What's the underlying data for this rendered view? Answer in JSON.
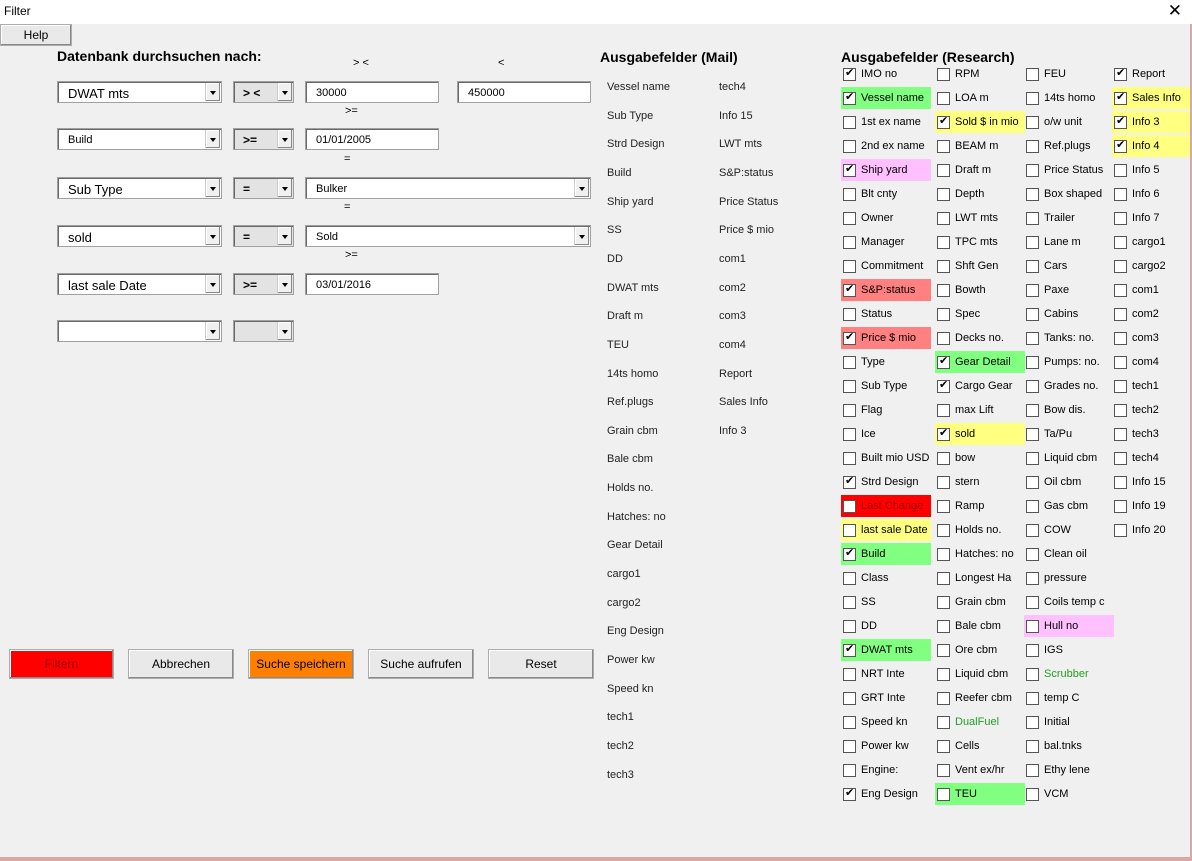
{
  "window": {
    "title": "Filter",
    "close": "✕"
  },
  "help_label": "Help",
  "search_heading": "Datenbank durchsuchen nach:",
  "op_hints": [
    "> <",
    "<",
    ">=",
    "=",
    "=",
    ">="
  ],
  "filters": [
    {
      "field": "DWAT mts",
      "op": "> <",
      "value": "30000",
      "value2": "450000",
      "value_type": "text"
    },
    {
      "field": "Build",
      "op": ">=",
      "value": "01/01/2005",
      "value_type": "text"
    },
    {
      "field": "Sub Type",
      "op": "=",
      "value": "Bulker",
      "value_type": "combo"
    },
    {
      "field": "sold",
      "op": "=",
      "value": "Sold",
      "value_type": "combo"
    },
    {
      "field": "last sale Date",
      "op": ">=",
      "value": "03/01/2016",
      "value_type": "text"
    },
    {
      "field": "",
      "op": "",
      "value_type": "none"
    }
  ],
  "buttons": {
    "filter": "Filtern",
    "cancel": "Abbrechen",
    "save": "Suche speichern",
    "load": "Suche aufrufen",
    "reset": "Reset"
  },
  "colors": {
    "filter_btn": "#ff0000",
    "save_btn": "#ff8000",
    "green": "#80ff80",
    "yellow": "#ffff80",
    "pink": "#ffc0ff",
    "salmon": "#ff8080",
    "red": "#ff0000"
  },
  "mail": {
    "heading": "Ausgabefelder (Mail)",
    "col1": [
      "Vessel name",
      "Sub Type",
      "Strd Design",
      "Build",
      "Ship yard",
      "SS",
      "DD",
      "DWAT mts",
      "Draft m",
      "TEU",
      "14ts homo",
      "Ref.plugs",
      "Grain cbm",
      "Bale cbm",
      "Holds no.",
      "Hatches: no",
      "Gear Detail",
      "cargo1",
      "cargo2",
      "Eng Design",
      "Power kw",
      "Speed kn",
      "tech1",
      "tech2",
      "tech3"
    ],
    "col2": [
      "tech4",
      "Info 15",
      "LWT mts",
      "S&P:status",
      "Price Status",
      "Price $ mio",
      "com1",
      "com2",
      "com3",
      "com4",
      "Report",
      "Sales Info",
      "Info 3"
    ]
  },
  "research": {
    "heading": "Ausgabefelder (Research)",
    "columns": [
      [
        {
          "label": "IMO no",
          "checked": true
        },
        {
          "label": "Vessel name",
          "checked": true,
          "bg": "green"
        },
        {
          "label": "1st ex name"
        },
        {
          "label": "2nd ex name"
        },
        {
          "label": "Ship yard",
          "checked": true,
          "bg": "pink"
        },
        {
          "label": "Blt cnty"
        },
        {
          "label": "Owner"
        },
        {
          "label": "Manager"
        },
        {
          "label": "Commitment"
        },
        {
          "label": "S&P:status",
          "checked": true,
          "bg": "salmon"
        },
        {
          "label": "Status"
        },
        {
          "label": "Price $ mio",
          "checked": true,
          "bg": "salmon"
        },
        {
          "label": "Type"
        },
        {
          "label": "Sub Type"
        },
        {
          "label": "Flag"
        },
        {
          "label": "Ice"
        },
        {
          "label": "Built mio USD"
        },
        {
          "label": "Strd Design",
          "checked": true
        },
        {
          "label": "Last Change",
          "bg": "red",
          "color": "#a00000"
        },
        {
          "label": "last sale Date",
          "bg": "yellow"
        },
        {
          "label": "Build",
          "checked": true,
          "bg": "green"
        },
        {
          "label": "Class"
        },
        {
          "label": "SS"
        },
        {
          "label": "DD"
        },
        {
          "label": "DWAT mts",
          "checked": true,
          "bg": "green"
        },
        {
          "label": "NRT Inte"
        },
        {
          "label": "GRT Inte"
        },
        {
          "label": "Speed kn"
        },
        {
          "label": "Power kw"
        },
        {
          "label": "Engine:"
        },
        {
          "label": "Eng Design",
          "checked": true
        }
      ],
      [
        {
          "label": "RPM"
        },
        {
          "label": "LOA m"
        },
        {
          "label": "Sold $ in mio",
          "checked": true,
          "bg": "yellow"
        },
        {
          "label": "BEAM m"
        },
        {
          "label": "Draft m"
        },
        {
          "label": "Depth"
        },
        {
          "label": "LWT mts"
        },
        {
          "label": "TPC mts"
        },
        {
          "label": "Shft Gen"
        },
        {
          "label": "Bowth"
        },
        {
          "label": "Spec"
        },
        {
          "label": "Decks no."
        },
        {
          "label": "Gear Detail",
          "checked": true,
          "bg": "green"
        },
        {
          "label": "Cargo Gear",
          "checked": true
        },
        {
          "label": "max Lift"
        },
        {
          "label": "sold",
          "checked": true,
          "bg": "yellow"
        },
        {
          "label": "bow"
        },
        {
          "label": "stern"
        },
        {
          "label": "Ramp"
        },
        {
          "label": "Holds no."
        },
        {
          "label": "Hatches: no"
        },
        {
          "label": "Longest Ha"
        },
        {
          "label": "Grain cbm"
        },
        {
          "label": "Bale cbm"
        },
        {
          "label": "Ore cbm"
        },
        {
          "label": "Liquid cbm"
        },
        {
          "label": "Reefer cbm"
        },
        {
          "label": "DualFuel",
          "color": "#20a020"
        },
        {
          "label": "Cells"
        },
        {
          "label": "Vent ex/hr"
        },
        {
          "label": "TEU",
          "bg": "green"
        }
      ],
      [
        {
          "label": "FEU"
        },
        {
          "label": "14ts homo"
        },
        {
          "label": "o/w unit"
        },
        {
          "label": "Ref.plugs"
        },
        {
          "label": "Price Status"
        },
        {
          "label": "Box shaped"
        },
        {
          "label": "Trailer"
        },
        {
          "label": "Lane m"
        },
        {
          "label": "Cars"
        },
        {
          "label": "Paxe"
        },
        {
          "label": "Cabins"
        },
        {
          "label": "Tanks: no."
        },
        {
          "label": "Pumps: no."
        },
        {
          "label": "Grades no."
        },
        {
          "label": "Bow dis."
        },
        {
          "label": "Ta/Pu"
        },
        {
          "label": "Liquid cbm"
        },
        {
          "label": "Oil cbm"
        },
        {
          "label": "Gas cbm"
        },
        {
          "label": "COW"
        },
        {
          "label": "Clean oil"
        },
        {
          "label": "pressure"
        },
        {
          "label": "Coils temp c"
        },
        {
          "label": "Hull no",
          "bg": "pink"
        },
        {
          "label": "IGS"
        },
        {
          "label": "Scrubber",
          "color": "#20a020"
        },
        {
          "label": "temp C"
        },
        {
          "label": "Initial"
        },
        {
          "label": "bal.tnks"
        },
        {
          "label": "Ethy lene"
        },
        {
          "label": "VCM"
        }
      ],
      [
        {
          "label": "Report",
          "checked": true
        },
        {
          "label": "Sales Info",
          "checked": true,
          "bg": "yellow"
        },
        {
          "label": "Info 3",
          "checked": true,
          "bg": "yellow"
        },
        {
          "label": "Info 4",
          "checked": true,
          "bg": "yellow"
        },
        {
          "label": "Info 5"
        },
        {
          "label": "Info 6"
        },
        {
          "label": "Info 7"
        },
        {
          "label": "cargo1"
        },
        {
          "label": "cargo2"
        },
        {
          "label": "com1"
        },
        {
          "label": "com2"
        },
        {
          "label": "com3"
        },
        {
          "label": "com4"
        },
        {
          "label": "tech1"
        },
        {
          "label": "tech2"
        },
        {
          "label": "tech3"
        },
        {
          "label": "tech4"
        },
        {
          "label": "Info 15"
        },
        {
          "label": "Info 19"
        },
        {
          "label": "Info 20"
        }
      ]
    ]
  }
}
